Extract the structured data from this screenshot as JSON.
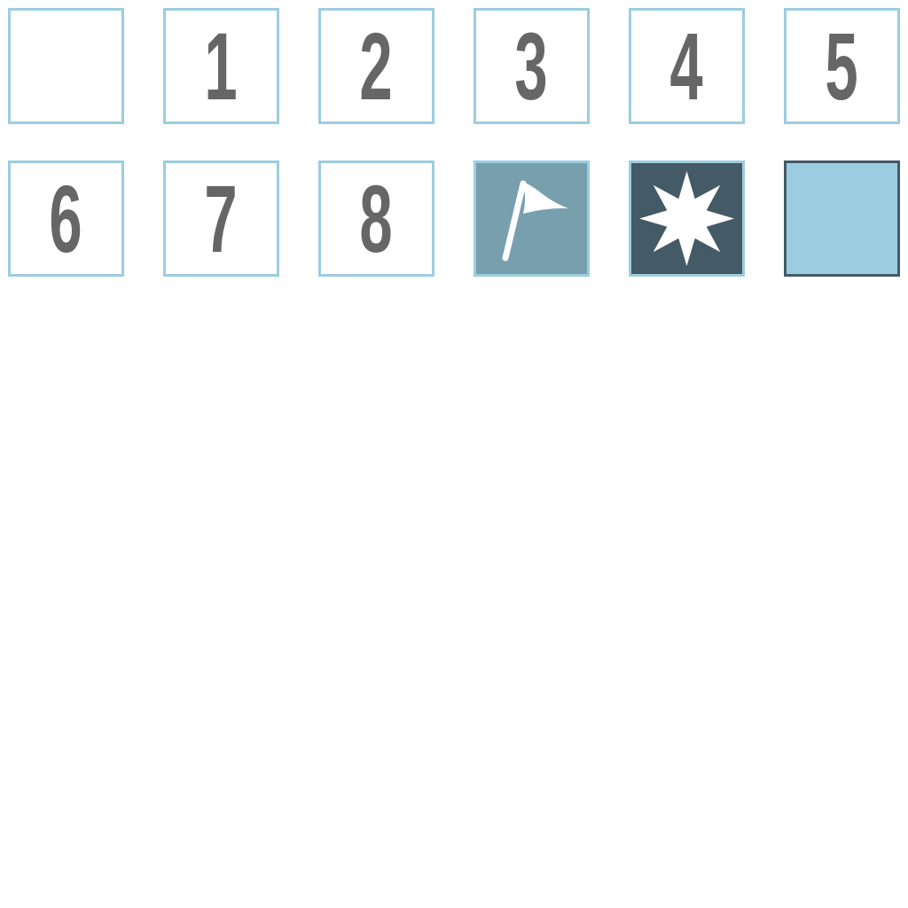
{
  "tiles": {
    "revealed_empty": {
      "label": ""
    },
    "num_1": {
      "label": "1"
    },
    "num_2": {
      "label": "2"
    },
    "num_3": {
      "label": "3"
    },
    "num_4": {
      "label": "4"
    },
    "num_5": {
      "label": "5"
    },
    "num_6": {
      "label": "6"
    },
    "num_7": {
      "label": "7"
    },
    "num_8": {
      "label": "8"
    },
    "flag": {
      "icon": "flag-icon"
    },
    "mine": {
      "icon": "mine-icon"
    },
    "hidden": {
      "label": ""
    }
  },
  "colors": {
    "tile_border": "#9ccde0",
    "number_text": "#666666",
    "flag_bg": "#789fae",
    "mine_bg": "#445a66",
    "hidden_bg": "#9ccde0",
    "hidden_border": "#445a66",
    "icon_fill": "#ffffff"
  }
}
